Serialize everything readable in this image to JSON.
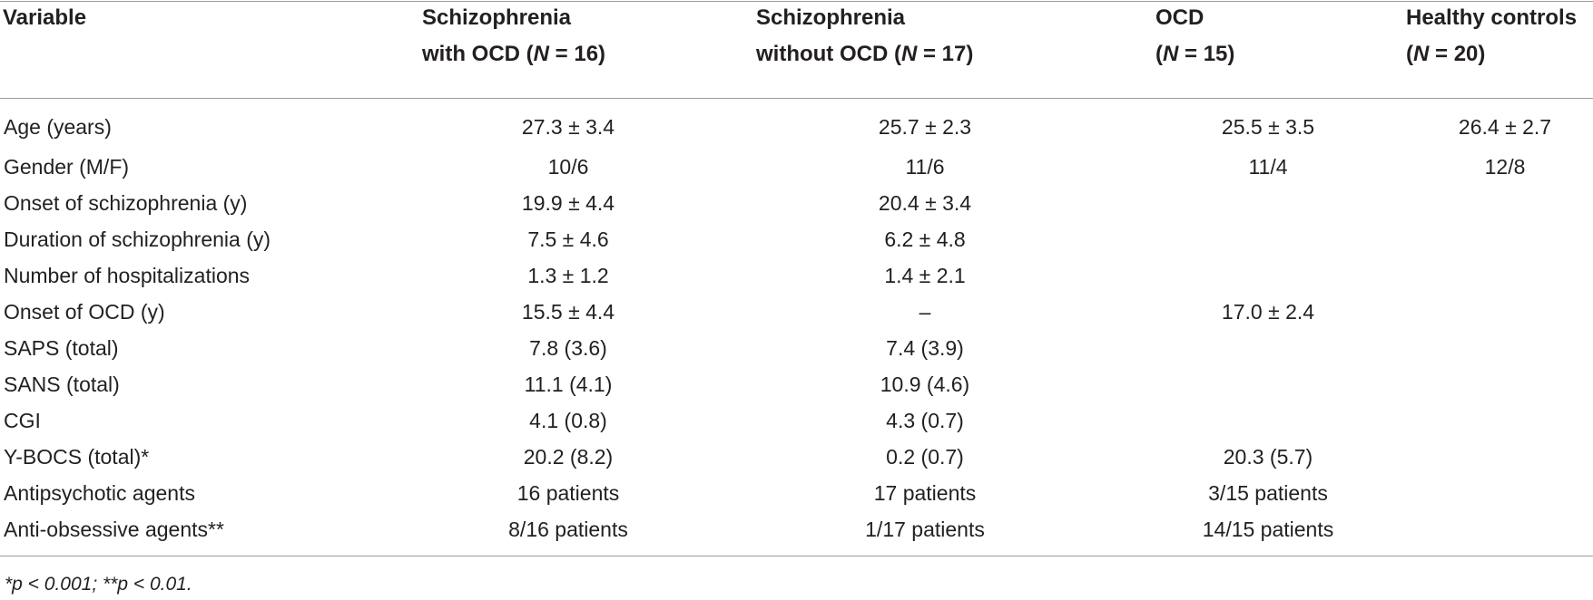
{
  "table": {
    "headers": [
      [
        "Variable"
      ],
      [
        "Schizophrenia",
        "with OCD (",
        "N",
        " = 16)"
      ],
      [
        "Schizophrenia",
        "without OCD (",
        "N",
        " = 17)"
      ],
      [
        "OCD",
        "(",
        "N",
        " = 15)"
      ],
      [
        "Healthy controls",
        "(",
        "N",
        " = 20)"
      ]
    ],
    "rows": [
      [
        "Age (years)",
        "27.3 ± 3.4",
        "25.7 ± 2.3",
        "25.5 ± 3.5",
        "26.4 ± 2.7"
      ],
      [
        "Gender (M/F)",
        "10/6",
        "11/6",
        "11/4",
        "12/8"
      ],
      [
        "Onset of schizophrenia (y)",
        "19.9 ± 4.4",
        "20.4 ± 3.4",
        "",
        ""
      ],
      [
        "Duration of schizophrenia (y)",
        "7.5 ± 4.6",
        "6.2 ± 4.8",
        "",
        ""
      ],
      [
        "Number of hospitalizations",
        "1.3 ± 1.2",
        "1.4 ± 2.1",
        "",
        ""
      ],
      [
        "Onset of OCD (y)",
        "15.5 ± 4.4",
        "–",
        "17.0 ± 2.4",
        ""
      ],
      [
        "SAPS (total)",
        "7.8 (3.6)",
        "7.4 (3.9)",
        "",
        ""
      ],
      [
        "SANS (total)",
        "11.1 (4.1)",
        "10.9 (4.6)",
        "",
        ""
      ],
      [
        "CGI",
        "4.1 (0.8)",
        "4.3 (0.7)",
        "",
        ""
      ],
      [
        "Y-BOCS (total)*",
        "20.2 (8.2)",
        "0.2 (0.7)",
        "20.3 (5.7)",
        ""
      ],
      [
        "Antipsychotic agents",
        "16 patients",
        "17 patients",
        "3/15 patients",
        ""
      ],
      [
        "Anti-obsessive agents**",
        "8/16 patients",
        "1/17 patients",
        "14/15 patients",
        ""
      ]
    ]
  },
  "footnote": "*p < 0.001; **p < 0.01."
}
